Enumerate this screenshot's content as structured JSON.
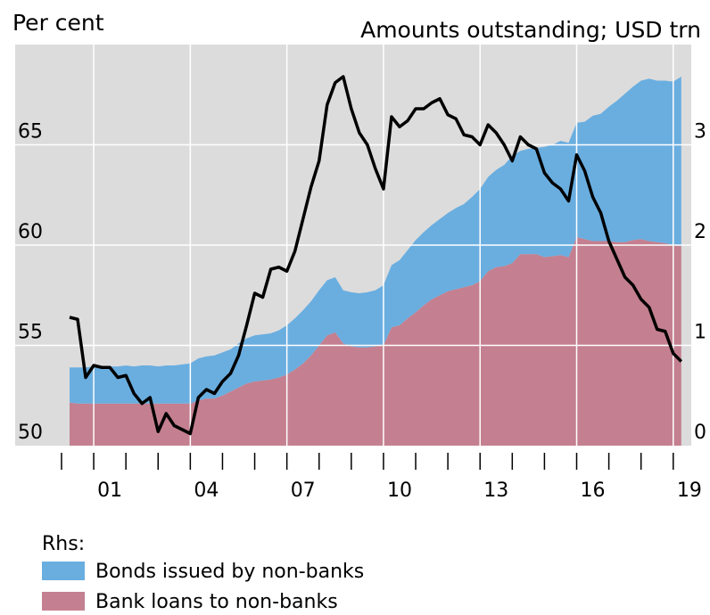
{
  "chart_data": {
    "type": "area",
    "ylabel": "Per cent",
    "y2label": "Amounts outstanding; USD trn",
    "legend_title": "Rhs:",
    "x": [
      2000.25,
      2000.5,
      2000.75,
      2001,
      2001.25,
      2001.5,
      2001.75,
      2002,
      2002.25,
      2002.5,
      2002.75,
      2003,
      2003.25,
      2003.5,
      2003.75,
      2004,
      2004.25,
      2004.5,
      2004.75,
      2005,
      2005.25,
      2005.5,
      2005.75,
      2006,
      2006.25,
      2006.5,
      2006.75,
      2007,
      2007.25,
      2007.5,
      2007.75,
      2008,
      2008.25,
      2008.5,
      2008.75,
      2009,
      2009.25,
      2009.5,
      2009.75,
      2010,
      2010.25,
      2010.5,
      2010.75,
      2011,
      2011.25,
      2011.5,
      2011.75,
      2012,
      2012.25,
      2012.5,
      2012.75,
      2013,
      2013.25,
      2013.5,
      2013.75,
      2014,
      2014.25,
      2014.5,
      2014.75,
      2015,
      2015.25,
      2015.5,
      2015.75,
      2016,
      2016.25,
      2016.5,
      2016.75,
      2017,
      2017.25,
      2017.5,
      2017.75,
      2018,
      2018.25,
      2018.5,
      2018.75,
      2019,
      2019.25
    ],
    "series": [
      {
        "name": "Bonds issued by non-banks",
        "type": "area",
        "axis": "y2",
        "stack": "bottom",
        "color": "#6aaee0",
        "values": [
          0.35,
          0.36,
          0.36,
          0.37,
          0.37,
          0.37,
          0.37,
          0.38,
          0.37,
          0.38,
          0.38,
          0.37,
          0.38,
          0.38,
          0.39,
          0.4,
          0.42,
          0.42,
          0.43,
          0.43,
          0.42,
          0.44,
          0.45,
          0.46,
          0.46,
          0.46,
          0.47,
          0.49,
          0.51,
          0.53,
          0.54,
          0.55,
          0.55,
          0.55,
          0.53,
          0.54,
          0.54,
          0.55,
          0.56,
          0.6,
          0.62,
          0.65,
          0.68,
          0.72,
          0.73,
          0.74,
          0.76,
          0.78,
          0.81,
          0.83,
          0.88,
          0.92,
          0.94,
          0.97,
          1.01,
          1.07,
          1.03,
          1.05,
          1.06,
          1.1,
          1.11,
          1.14,
          1.14,
          1.14,
          1.17,
          1.25,
          1.27,
          1.34,
          1.41,
          1.48,
          1.53,
          1.58,
          1.62,
          1.61,
          1.62,
          1.63,
          1.69
        ]
      },
      {
        "name": "Bank loans to non-banks",
        "type": "area",
        "axis": "y2",
        "color": "#c48090",
        "values": [
          0.43,
          0.42,
          0.42,
          0.42,
          0.42,
          0.42,
          0.42,
          0.42,
          0.42,
          0.42,
          0.42,
          0.42,
          0.42,
          0.42,
          0.42,
          0.42,
          0.45,
          0.47,
          0.47,
          0.5,
          0.54,
          0.58,
          0.62,
          0.64,
          0.65,
          0.66,
          0.68,
          0.71,
          0.76,
          0.82,
          0.9,
          1.0,
          1.1,
          1.13,
          1.02,
          0.99,
          0.98,
          0.98,
          0.99,
          1.0,
          1.18,
          1.2,
          1.27,
          1.33,
          1.4,
          1.46,
          1.5,
          1.54,
          1.56,
          1.58,
          1.6,
          1.64,
          1.74,
          1.78,
          1.79,
          1.82,
          1.91,
          1.91,
          1.91,
          1.88,
          1.89,
          1.9,
          1.88,
          2.08,
          2.06,
          2.04,
          2.04,
          2.04,
          2.03,
          2.03,
          2.05,
          2.06,
          2.04,
          2.03,
          2.02,
          2.0,
          1.99
        ]
      },
      {
        "type": "line",
        "axis": "y",
        "color": "#000000",
        "values": [
          56.4,
          56.3,
          53.4,
          54.0,
          53.9,
          53.9,
          53.4,
          53.5,
          52.6,
          52.1,
          52.4,
          50.7,
          51.6,
          51.0,
          50.8,
          50.6,
          52.4,
          52.8,
          52.6,
          53.2,
          53.6,
          54.5,
          56.0,
          57.6,
          57.4,
          58.8,
          58.9,
          58.7,
          59.7,
          61.3,
          62.9,
          64.2,
          67.0,
          68.1,
          68.4,
          66.8,
          65.6,
          65.0,
          63.8,
          62.8,
          66.4,
          65.9,
          66.2,
          66.8,
          66.8,
          67.1,
          67.3,
          66.5,
          66.3,
          65.5,
          65.4,
          65.0,
          66.0,
          65.6,
          65.0,
          64.2,
          65.4,
          65.0,
          64.8,
          63.6,
          63.1,
          62.8,
          62.2,
          64.5,
          63.7,
          62.4,
          61.6,
          60.2,
          59.3,
          58.4,
          58.0,
          57.3,
          56.9,
          55.8,
          55.7,
          54.6,
          54.2
        ]
      }
    ],
    "xlim": [
      1998.56,
      2019.56
    ],
    "xticks": [
      {
        "value": 2001,
        "label": "01"
      },
      {
        "value": 2004,
        "label": "04"
      },
      {
        "value": 2007,
        "label": "07"
      },
      {
        "value": 2010,
        "label": "10"
      },
      {
        "value": 2013,
        "label": "13"
      },
      {
        "value": 2016,
        "label": "16"
      },
      {
        "value": 2019,
        "label": "19"
      }
    ],
    "xminorticks": [
      2000,
      2002,
      2003,
      2005,
      2006,
      2008,
      2009,
      2011,
      2012,
      2014,
      2015,
      2017,
      2018
    ],
    "ylim": [
      50,
      70
    ],
    "yticks": [
      50,
      55,
      60,
      65
    ],
    "y2lim": [
      0,
      4
    ],
    "y2ticks": [
      0,
      1,
      2,
      3
    ],
    "grid": true,
    "background": "#dcdcdc"
  }
}
